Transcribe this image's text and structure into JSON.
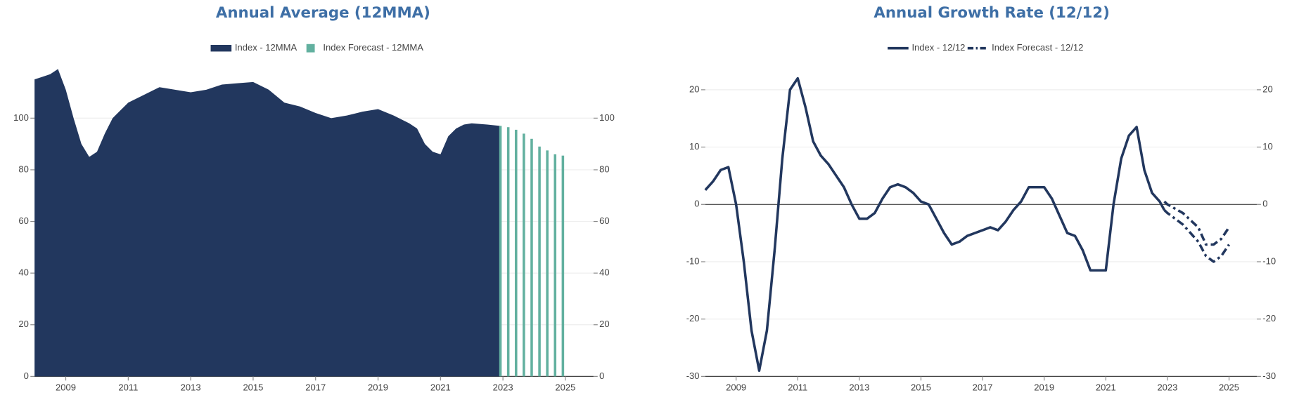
{
  "chart_data": [
    {
      "type": "area",
      "title": "Annual Average (12MMA)",
      "xlim": [
        2008,
        2025.9
      ],
      "xticks": [
        2009,
        2011,
        2013,
        2015,
        2017,
        2019,
        2021,
        2023,
        2025
      ],
      "ylim": [
        0,
        120
      ],
      "yticks": [
        0,
        20,
        40,
        60,
        80,
        100
      ],
      "grid": true,
      "mirror_y_axis": true,
      "series": [
        {
          "name": "Index - 12MMA",
          "style": "area",
          "color": "#22375e",
          "x": [
            2008,
            2008.25,
            2008.5,
            2008.75,
            2009,
            2009.25,
            2009.5,
            2009.75,
            2010,
            2010.25,
            2010.5,
            2010.75,
            2011,
            2011.5,
            2012,
            2012.5,
            2013,
            2013.5,
            2014,
            2014.5,
            2015,
            2015.5,
            2016,
            2016.5,
            2017,
            2017.5,
            2018,
            2018.5,
            2019,
            2019.5,
            2020,
            2020.25,
            2020.5,
            2020.75,
            2021,
            2021.25,
            2021.5,
            2021.75,
            2022,
            2022.5,
            2022.9
          ],
          "values": [
            115,
            116,
            117,
            119,
            111,
            100,
            90,
            85,
            87,
            94,
            100,
            103,
            106,
            109,
            112,
            111,
            110,
            111,
            113,
            113.5,
            114,
            111,
            106,
            104.5,
            102,
            100,
            101,
            102.5,
            103.5,
            101,
            98,
            96,
            90,
            87,
            86,
            93,
            96,
            97.5,
            98,
            97.5,
            97
          ]
        },
        {
          "name": "Index Forecast - 12MMA",
          "style": "bar",
          "color": "#62b09f",
          "x": [
            2022.92,
            2023.17,
            2023.42,
            2023.67,
            2023.92,
            2024.17,
            2024.42,
            2024.67,
            2024.92
          ],
          "values": [
            97,
            96.5,
            95.5,
            94,
            92,
            89,
            87.5,
            86,
            85.5
          ]
        }
      ]
    },
    {
      "type": "line",
      "title": "Annual Growth Rate (12/12)",
      "xlim": [
        2008,
        2025.9
      ],
      "xticks": [
        2009,
        2011,
        2013,
        2015,
        2017,
        2019,
        2021,
        2023,
        2025
      ],
      "ylim": [
        -30,
        24
      ],
      "yticks": [
        -30,
        -20,
        -10,
        0,
        10,
        20
      ],
      "grid": true,
      "mirror_y_axis": true,
      "zero_line": true,
      "series": [
        {
          "name": "Index - 12/12",
          "style": "solid",
          "color": "#22375e",
          "x": [
            2008,
            2008.25,
            2008.5,
            2008.75,
            2009,
            2009.25,
            2009.5,
            2009.75,
            2010,
            2010.25,
            2010.5,
            2010.75,
            2011,
            2011.25,
            2011.5,
            2011.75,
            2012,
            2012.25,
            2012.5,
            2012.75,
            2013,
            2013.25,
            2013.5,
            2013.75,
            2014,
            2014.25,
            2014.5,
            2014.75,
            2015,
            2015.25,
            2015.5,
            2015.75,
            2016,
            2016.25,
            2016.5,
            2016.75,
            2017,
            2017.25,
            2017.5,
            2017.75,
            2018,
            2018.25,
            2018.5,
            2018.75,
            2019,
            2019.25,
            2019.5,
            2019.75,
            2020,
            2020.25,
            2020.5,
            2020.75,
            2021,
            2021.25,
            2021.5,
            2021.75,
            2022,
            2022.25,
            2022.5,
            2022.75,
            2022.9
          ],
          "values": [
            2.5,
            4,
            6,
            6.5,
            0,
            -10,
            -22,
            -29,
            -22,
            -8,
            8,
            20,
            22,
            17,
            11,
            8.5,
            7,
            5,
            3,
            0,
            -2.5,
            -2.5,
            -1.5,
            1,
            3,
            3.5,
            3,
            2,
            0.5,
            0,
            -2.5,
            -5,
            -7,
            -6.5,
            -5.5,
            -5,
            -4.5,
            -4,
            -4.5,
            -3,
            -1,
            0.5,
            3,
            3,
            3,
            1,
            -2,
            -5,
            -5.5,
            -8,
            -11.5,
            -11.5,
            -11.5,
            0,
            8,
            12,
            13.5,
            6,
            2,
            0.5,
            -1
          ]
        },
        {
          "name": "Index Forecast - 12/12",
          "style": "dashdot",
          "color": "#22375e",
          "x": [
            2022.9,
            2023,
            2023.5,
            2024,
            2024.25,
            2024.5,
            2024.75,
            2025
          ],
          "values": [
            0.5,
            0,
            -1.5,
            -4,
            -7,
            -7,
            -6,
            -4
          ],
          "lower_values": [
            -1,
            -1.5,
            -3.5,
            -6.5,
            -9,
            -10,
            -9,
            -7
          ]
        }
      ]
    }
  ]
}
